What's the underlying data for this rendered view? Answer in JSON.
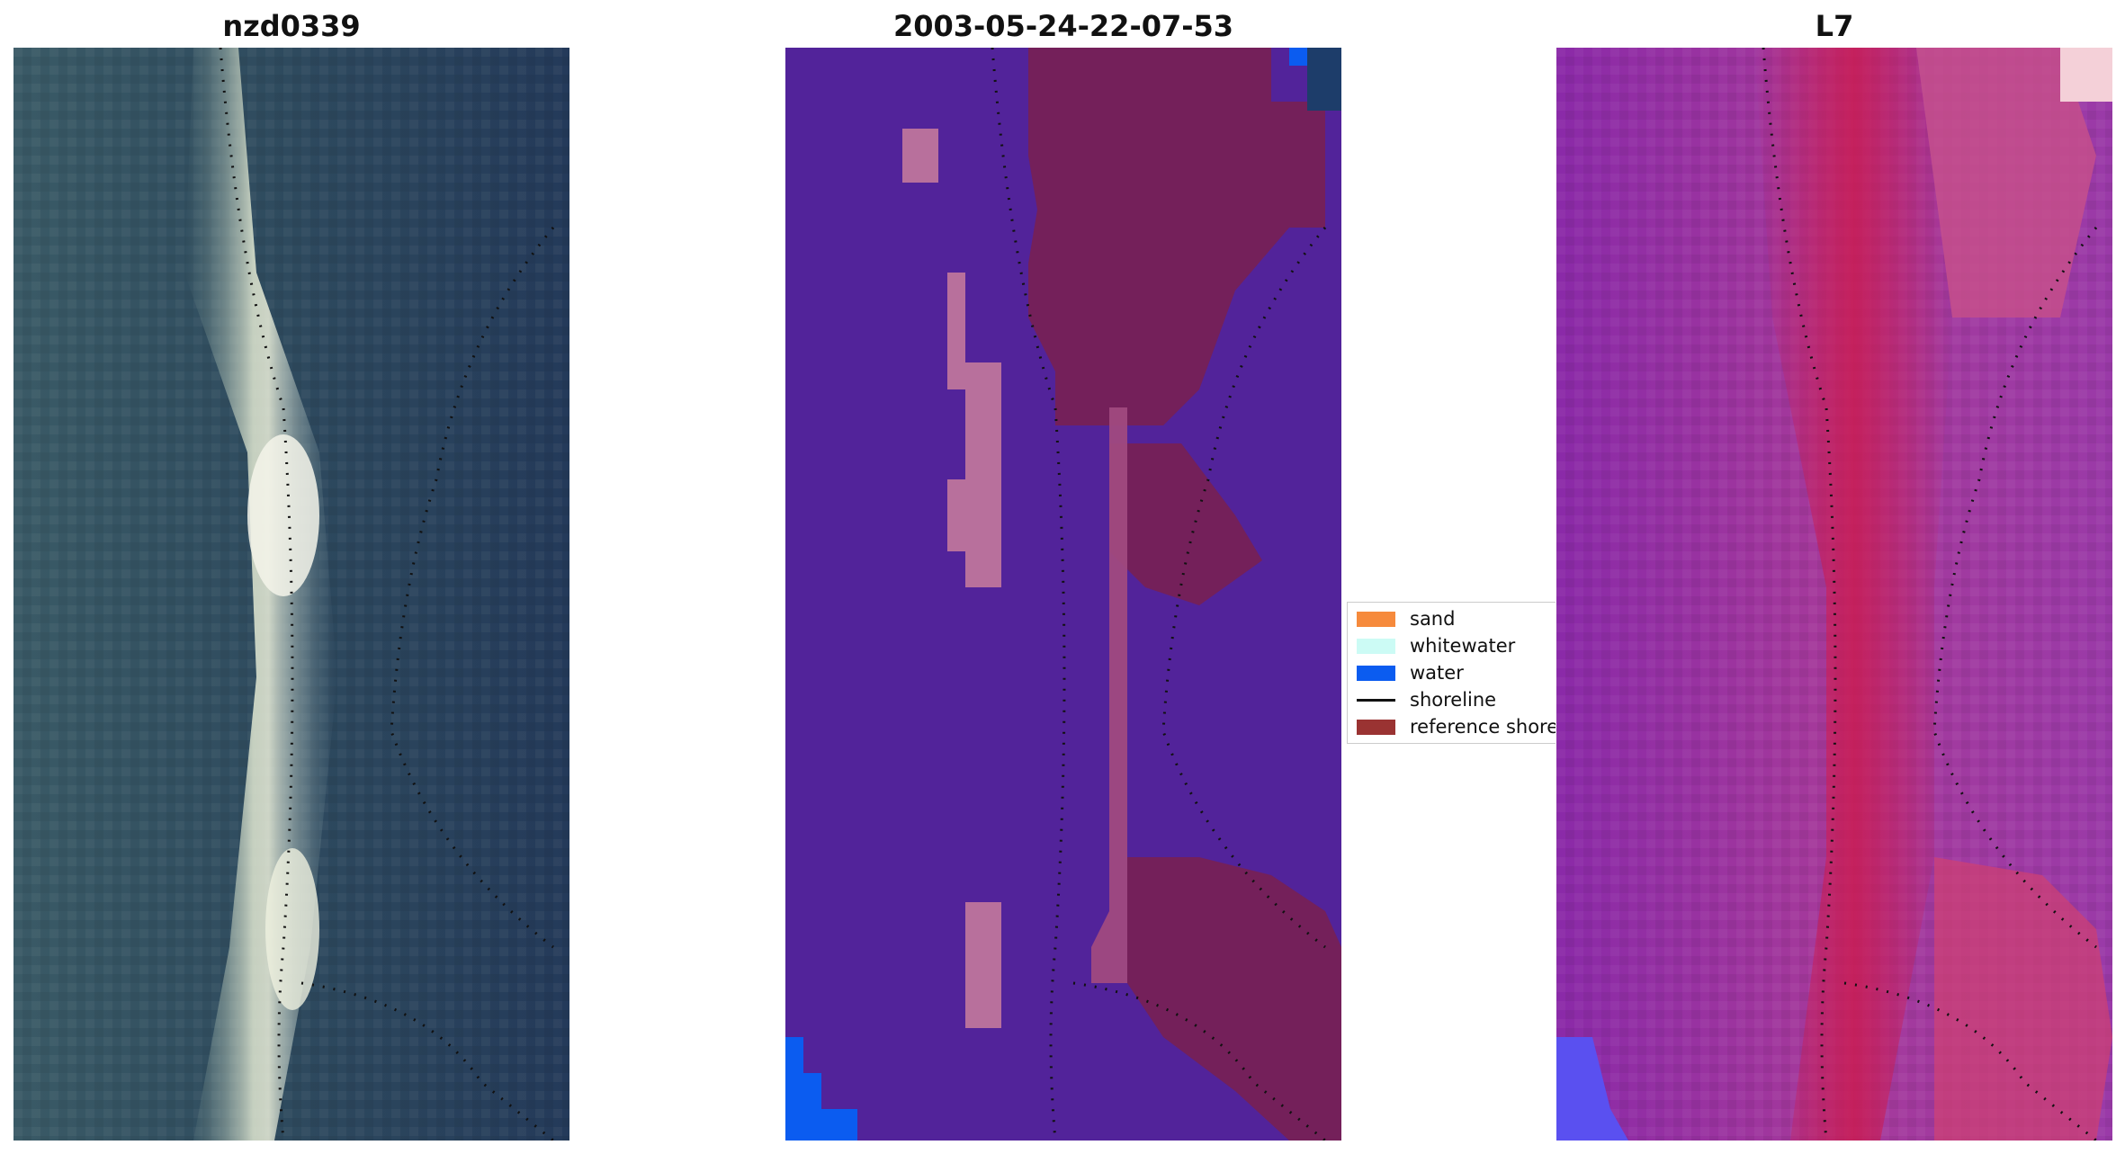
{
  "panels": [
    {
      "title": "nzd0339"
    },
    {
      "title": "2003-05-24-22-07-53"
    },
    {
      "title": "L7"
    }
  ],
  "legend": {
    "items": [
      {
        "label": "sand",
        "color": "#f68a3c",
        "kind": "patch"
      },
      {
        "label": "whitewater",
        "color": "#ccfbf5",
        "kind": "patch"
      },
      {
        "label": "water",
        "color": "#0b5cf0",
        "kind": "patch"
      },
      {
        "label": "shoreline",
        "color": "#111111",
        "kind": "line"
      },
      {
        "label": "reference shoreline",
        "color": "#9a3332",
        "kind": "patch"
      }
    ]
  },
  "colors": {
    "classification_background": "#52239a",
    "reference_region": "#74205a",
    "sand_region": "#b8709c",
    "water_corner": "#0b5cf0",
    "satellite_background": "#2f4b63",
    "index_background": "#8a2aa8",
    "index_high": "#cc1a4e"
  }
}
